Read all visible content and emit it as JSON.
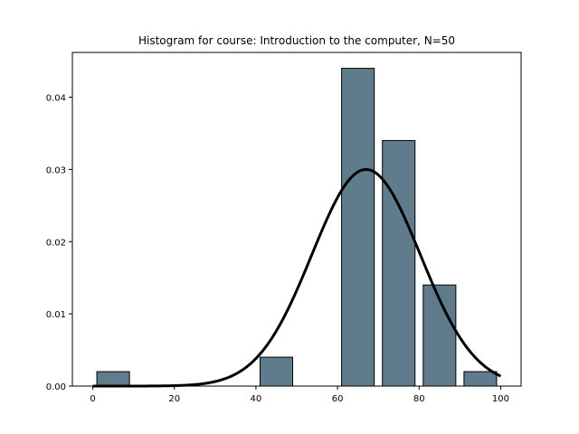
{
  "chart_data": {
    "type": "bar",
    "title": "Histogram for course: Introduction to the computer,  N=50",
    "xlabel": "",
    "ylabel": "",
    "xlim": [
      -5,
      105
    ],
    "ylim": [
      0,
      0.0462
    ],
    "bins": [
      {
        "start": 0,
        "end": 10,
        "value": 0.002
      },
      {
        "start": 10,
        "end": 20,
        "value": 0.0
      },
      {
        "start": 20,
        "end": 30,
        "value": 0.0
      },
      {
        "start": 30,
        "end": 40,
        "value": 0.0
      },
      {
        "start": 40,
        "end": 50,
        "value": 0.004
      },
      {
        "start": 50,
        "end": 60,
        "value": 0.0
      },
      {
        "start": 60,
        "end": 70,
        "value": 0.044
      },
      {
        "start": 70,
        "end": 80,
        "value": 0.034
      },
      {
        "start": 80,
        "end": 90,
        "value": 0.014
      },
      {
        "start": 90,
        "end": 100,
        "value": 0.002
      }
    ],
    "fit_curve": {
      "type": "normal",
      "mean": 67,
      "std": 13.3,
      "x_range": [
        0,
        100
      ]
    },
    "x_ticks": [
      0,
      20,
      40,
      60,
      80,
      100
    ],
    "y_ticks": [
      0.0,
      0.01,
      0.02,
      0.03,
      0.04
    ],
    "y_tick_labels": [
      "0.00",
      "0.01",
      "0.02",
      "0.03",
      "0.04"
    ],
    "grid": false,
    "colors": {
      "bar_fill": "#607b8b",
      "bar_edge": "#000000",
      "curve": "#000000"
    }
  }
}
